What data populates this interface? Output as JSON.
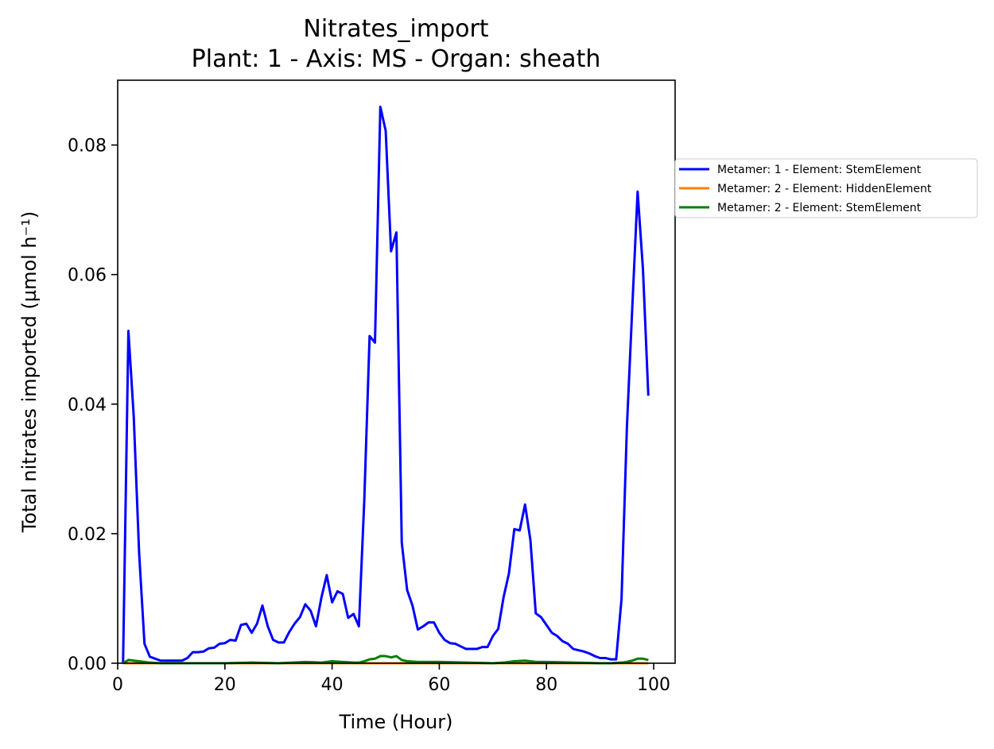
{
  "chart_data": {
    "type": "line",
    "title": "Nitrates_import",
    "subtitle": "Plant: 1 - Axis: MS - Organ: sheath",
    "xlabel": "Time (Hour)",
    "ylabel": "Total nitrates imported (µmol h⁻¹)",
    "xlim": [
      0,
      104
    ],
    "ylim": [
      0,
      0.09
    ],
    "xticks": [
      0,
      20,
      40,
      60,
      80,
      100
    ],
    "xtick_labels": [
      "0",
      "20",
      "40",
      "60",
      "80",
      "100"
    ],
    "yticks": [
      0,
      0.02,
      0.04,
      0.06,
      0.08
    ],
    "ytick_labels": [
      "0.00",
      "0.02",
      "0.04",
      "0.06",
      "0.08"
    ],
    "grid": false,
    "legend_position": "outside-right-top",
    "series": [
      {
        "name": "Metamer: 1 - Element: StemElement",
        "color": "#0000ff",
        "x": [
          1,
          2,
          3,
          4,
          5,
          6,
          7,
          8,
          9,
          10,
          11,
          12,
          13,
          14,
          15,
          16,
          17,
          18,
          19,
          20,
          21,
          22,
          23,
          24,
          25,
          26,
          27,
          28,
          29,
          30,
          31,
          32,
          33,
          34,
          35,
          36,
          37,
          38,
          39,
          40,
          41,
          42,
          43,
          44,
          45,
          46,
          47,
          48,
          49,
          50,
          51,
          52,
          53,
          54,
          55,
          56,
          57,
          58,
          59,
          60,
          61,
          62,
          63,
          64,
          65,
          66,
          67,
          68,
          69,
          70,
          71,
          72,
          73,
          74,
          75,
          76,
          77,
          78,
          79,
          80,
          81,
          82,
          83,
          84,
          85,
          86,
          87,
          88,
          89,
          90,
          91,
          92,
          93,
          94,
          95,
          96,
          97,
          98,
          99
        ],
        "y": [
          0.0,
          0.0513,
          0.038,
          0.017,
          0.003,
          0.001,
          0.0007,
          0.0004,
          0.0004,
          0.0004,
          0.0004,
          0.0004,
          0.0008,
          0.0017,
          0.0017,
          0.0018,
          0.0023,
          0.0024,
          0.003,
          0.0031,
          0.0036,
          0.0035,
          0.0059,
          0.0061,
          0.0047,
          0.0061,
          0.0089,
          0.0057,
          0.0036,
          0.0032,
          0.0032,
          0.0048,
          0.0061,
          0.0071,
          0.0091,
          0.0081,
          0.0057,
          0.0101,
          0.0136,
          0.0094,
          0.0111,
          0.0107,
          0.007,
          0.0076,
          0.0057,
          0.025,
          0.0505,
          0.0495,
          0.0859,
          0.0822,
          0.0636,
          0.0665,
          0.0186,
          0.0113,
          0.0089,
          0.0052,
          0.0057,
          0.0063,
          0.0063,
          0.0047,
          0.0036,
          0.0031,
          0.003,
          0.0026,
          0.0022,
          0.0022,
          0.0022,
          0.0025,
          0.0025,
          0.0042,
          0.0053,
          0.0102,
          0.0139,
          0.0207,
          0.0205,
          0.0245,
          0.019,
          0.0077,
          0.0071,
          0.0059,
          0.0047,
          0.0042,
          0.0034,
          0.003,
          0.0022,
          0.002,
          0.0018,
          0.0015,
          0.0011,
          0.0008,
          0.0008,
          0.0006,
          0.0006,
          0.0099,
          0.0364,
          0.0548,
          0.0728,
          0.0608,
          0.0413
        ]
      },
      {
        "name": "Metamer: 2 - Element: HiddenElement",
        "color": "#ff7f0e",
        "x": [
          1,
          10,
          20,
          30,
          40,
          50,
          60,
          70,
          80,
          90,
          99
        ],
        "y": [
          0,
          0,
          0,
          0,
          0,
          0,
          0,
          0,
          0,
          0,
          0
        ]
      },
      {
        "name": "Metamer: 2 - Element: StemElement",
        "color": "#008000",
        "x": [
          1,
          2,
          3,
          4,
          5,
          6,
          8,
          10,
          15,
          20,
          25,
          30,
          35,
          38,
          40,
          42,
          44,
          45,
          46,
          47,
          48,
          49,
          50,
          51,
          52,
          53,
          54,
          56,
          60,
          65,
          70,
          72,
          74,
          76,
          78,
          80,
          85,
          90,
          92,
          94,
          95,
          96,
          97,
          98,
          99
        ],
        "y": [
          0.0,
          0.0005,
          0.0004,
          0.0003,
          0.0002,
          0.0001,
          0.0,
          0.0,
          0.0,
          0.0,
          0.0001,
          0.0,
          0.0002,
          0.0001,
          0.0003,
          0.0002,
          0.0001,
          0.0001,
          0.0003,
          0.0006,
          0.0007,
          0.0011,
          0.0011,
          0.0009,
          0.0011,
          0.0005,
          0.0003,
          0.0002,
          0.0002,
          0.0001,
          0.0,
          0.0001,
          0.0003,
          0.0004,
          0.0002,
          0.0002,
          0.0001,
          0.0,
          0.0,
          0.0001,
          0.0002,
          0.0004,
          0.0007,
          0.0007,
          0.0005
        ]
      }
    ]
  }
}
